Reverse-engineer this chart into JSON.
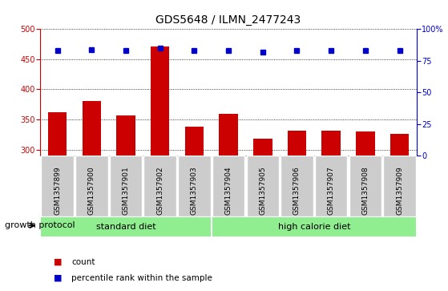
{
  "title": "GDS5648 / ILMN_2477243",
  "samples": [
    "GSM1357899",
    "GSM1357900",
    "GSM1357901",
    "GSM1357902",
    "GSM1357903",
    "GSM1357904",
    "GSM1357905",
    "GSM1357906",
    "GSM1357907",
    "GSM1357908",
    "GSM1357909"
  ],
  "counts": [
    362,
    381,
    357,
    471,
    338,
    359,
    318,
    331,
    331,
    330,
    326
  ],
  "percentiles": [
    83,
    84,
    83,
    85,
    83,
    83,
    82,
    83,
    83,
    83,
    83
  ],
  "ylim_left": [
    290,
    500
  ],
  "ylim_right": [
    0,
    100
  ],
  "yticks_left": [
    300,
    350,
    400,
    450,
    500
  ],
  "yticks_right": [
    0,
    25,
    50,
    75,
    100
  ],
  "bar_color": "#cc0000",
  "dot_color": "#0000cc",
  "groups": [
    {
      "label": "standard diet",
      "start": 0,
      "end": 5
    },
    {
      "label": "high calorie diet",
      "start": 5,
      "end": 11
    }
  ],
  "green_color": "#90ee90",
  "gray_color": "#cccccc",
  "xlabel_protocol": "growth protocol",
  "legend_count": "count",
  "legend_percentile": "percentile rank within the sample",
  "title_fontsize": 10,
  "tick_fontsize": 7,
  "label_fontsize": 8,
  "sample_fontsize": 6.5
}
